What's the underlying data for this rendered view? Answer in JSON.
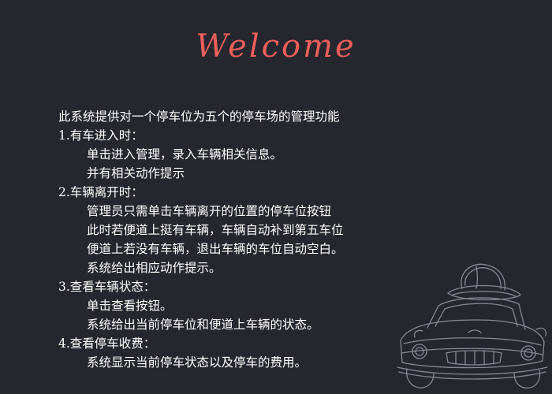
{
  "header": {
    "title": "Welcome"
  },
  "intro": "此系统提供对一个停车位为五个的停车场的管理功能",
  "sections": [
    {
      "heading": "1.有车进入时：",
      "lines": [
        "单击进入管理，录入车辆相关信息。",
        "并有相关动作提示"
      ]
    },
    {
      "heading": "2.车辆离开时：",
      "lines": [
        "管理员只需单击车辆离开的位置的停车位按钮",
        "此时若便道上挺有车辆，车辆自动补到第五车位",
        "便道上若没有车辆，退出车辆的车位自动空白。",
        "系统给出相应动作提示。"
      ]
    },
    {
      "heading": "3.查看车辆状态：",
      "lines": [
        "单击查看按钮。",
        "系统给出当前停车位和便道上车辆的状态。"
      ]
    },
    {
      "heading": "4.查看停车收费：",
      "lines": [
        "系统显示当前停车状态以及停车的费用。"
      ]
    }
  ],
  "decoration": {
    "icon": "car-sketch-icon"
  }
}
